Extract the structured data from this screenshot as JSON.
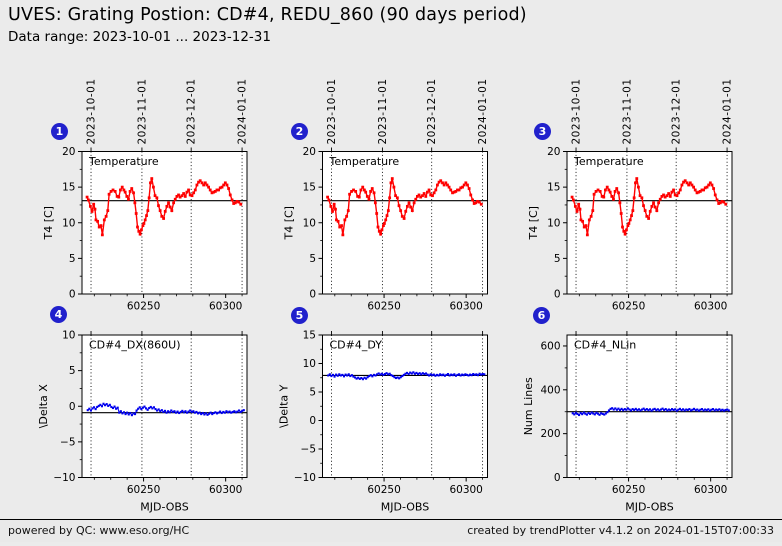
{
  "header": {
    "title": "UVES: Grating Postion: CD#4, REDU_860 (90 days period)",
    "subtitle": "Data range: 2023-10-01 ... 2023-12-31"
  },
  "footer": {
    "left": "powered by QC: www.eso.org/HC",
    "right": "created by trendPlotter v4.1.2 on 2024-01-15T07:00:33"
  },
  "badges": [
    "1",
    "2",
    "3",
    "4",
    "5",
    "6"
  ],
  "colors": {
    "background": "#ebebeb",
    "plot_bg": "#ffffff",
    "series_red": "#ff0000",
    "series_blue": "#0000ee",
    "badge_blue": "#2121cc",
    "avg_line": "#000000"
  },
  "month_marks": [
    {
      "mjd": 60218,
      "label": "2023-10-01"
    },
    {
      "mjd": 60249,
      "label": "2023-11-01"
    },
    {
      "mjd": 60279,
      "label": "2023-12-01"
    },
    {
      "mjd": 60310,
      "label": "2024-01-01"
    }
  ],
  "chart_data": [
    {
      "type": "line",
      "badge": "1",
      "label": "Temperature",
      "ylabel": "T4 [C]",
      "xlabel": "",
      "xlim": [
        60212.5,
        60313
      ],
      "ylim": [
        0,
        20
      ],
      "yticks": [
        0,
        5,
        10,
        15,
        20
      ],
      "y_minor": 2.5,
      "xticks": [
        60250,
        60300
      ],
      "x_minor": 10,
      "avg_line": 13.1,
      "series_ref": "temperature",
      "color": "#ff0000",
      "show_date_labels": true,
      "line_width": 1.4,
      "marker": 2.8
    },
    {
      "type": "line",
      "badge": "2",
      "label": "Temperature",
      "ylabel": "T4 [C]",
      "xlabel": "",
      "xlim": [
        60212.5,
        60313
      ],
      "ylim": [
        0,
        20
      ],
      "yticks": [
        0,
        5,
        10,
        15,
        20
      ],
      "y_minor": 2.5,
      "xticks": [
        60250,
        60300
      ],
      "x_minor": 10,
      "avg_line": 13.1,
      "series_ref": "temperature",
      "color": "#ff0000",
      "show_date_labels": true,
      "line_width": 1.4,
      "marker": 2.8
    },
    {
      "type": "line",
      "badge": "3",
      "label": "Temperature",
      "ylabel": "T4 [C]",
      "xlabel": "",
      "xlim": [
        60212.5,
        60313
      ],
      "ylim": [
        0,
        20
      ],
      "yticks": [
        0,
        5,
        10,
        15,
        20
      ],
      "y_minor": 2.5,
      "xticks": [
        60250,
        60300
      ],
      "x_minor": 10,
      "avg_line": 13.1,
      "series_ref": "temperature",
      "color": "#ff0000",
      "show_date_labels": true,
      "line_width": 1.4,
      "marker": 2.8
    },
    {
      "type": "line",
      "badge": "4",
      "label": "CD#4_DX(860U)",
      "ylabel": "\\Delta X",
      "xlabel": "MJD-OBS",
      "xlim": [
        60212.5,
        60313
      ],
      "ylim": [
        -10,
        10
      ],
      "yticks": [
        -10,
        -5,
        0,
        5,
        10
      ],
      "y_minor": 2.5,
      "xticks": [
        60250,
        60300
      ],
      "x_minor": 10,
      "avg_line": -0.9,
      "series_ref": "dx",
      "color": "#0000ee",
      "show_date_labels": false,
      "line_width": 1,
      "marker": 2.1
    },
    {
      "type": "line",
      "badge": "5",
      "label": "CD#4_DY",
      "ylabel": "\\Delta Y",
      "xlabel": "MJD-OBS",
      "xlim": [
        60212.5,
        60313
      ],
      "ylim": [
        -10,
        15
      ],
      "yticks": [
        -10,
        -5,
        0,
        5,
        10,
        15
      ],
      "y_minor": 2.5,
      "xticks": [
        60250,
        60300
      ],
      "x_minor": 10,
      "avg_line": 7.9,
      "series_ref": "dy",
      "color": "#0000ee",
      "show_date_labels": false,
      "line_width": 1,
      "marker": 2.1
    },
    {
      "type": "line",
      "badge": "6",
      "label": "CD#4_NLin",
      "ylabel": "Num Lines",
      "xlabel": "MJD-OBS",
      "xlim": [
        60212.5,
        60313
      ],
      "ylim": [
        0,
        650
      ],
      "yticks": [
        0,
        200,
        400,
        600
      ],
      "y_minor": 100,
      "xticks": [
        60250,
        60300
      ],
      "x_minor": 10,
      "avg_line": 300,
      "series_ref": "nlin",
      "color": "#0000ee",
      "show_date_labels": false,
      "line_width": 1,
      "marker": 2.1
    }
  ],
  "series_pool": {
    "temperature": {
      "x": [
        60215.6,
        60216.4,
        60217.6,
        60218.6,
        60219.6,
        60220.4,
        60221,
        60222,
        60223,
        60224.1,
        60224.9,
        60226.1,
        60227.2,
        60228.2,
        60229,
        60230.2,
        60231.4,
        60232.7,
        60233.9,
        60234.9,
        60235.9,
        60237,
        60238,
        60238.8,
        60239.8,
        60240.8,
        60241.8,
        60242.8,
        60243.9,
        60244.7,
        60245.5,
        60246.3,
        60247.1,
        60247.9,
        60248.7,
        60249.6,
        60250.2,
        60251,
        60251.8,
        60252.6,
        60253.4,
        60254.2,
        60255,
        60256,
        60257,
        60258.1,
        60259.1,
        60260.1,
        60261.1,
        60262.2,
        60263.2,
        60264.2,
        60265.2,
        60266.2,
        60267.2,
        60268.3,
        60269.3,
        60270.3,
        60271.3,
        60272.3,
        60273.4,
        60274.4,
        60275.4,
        60276.4,
        60277.4,
        60278.4,
        60279.5,
        60280.5,
        60281.5,
        60282.5,
        60283.5,
        60284.5,
        60285.6,
        60286.6,
        60287.6,
        60288.6,
        60289.6,
        60290.6,
        60291.7,
        60292.7,
        60293.7,
        60294.7,
        60295.7,
        60296.7,
        60297.8,
        60298.8,
        60299.8,
        60300.8,
        60301.8,
        60302.8,
        60303.9,
        60304.9,
        60305.9,
        60306.9,
        60308,
        60309.2
      ],
      "y": [
        13.6,
        13.2,
        12.3,
        11.6,
        12.6,
        11.9,
        10.4,
        10.2,
        9.4,
        9.6,
        8.3,
        10.4,
        10.9,
        11.7,
        14,
        14.4,
        14.6,
        14.4,
        13.7,
        13.6,
        14.6,
        15,
        14.6,
        14.3,
        13.7,
        13.3,
        14.4,
        14.8,
        14.2,
        12.8,
        11.3,
        9.4,
        8.8,
        8.4,
        9,
        9.6,
        9.9,
        10.4,
        11,
        11.7,
        13.5,
        15.6,
        16.2,
        15,
        13.8,
        13.5,
        12.4,
        11.7,
        10.9,
        10.6,
        11.6,
        12.3,
        12.8,
        12.2,
        11.7,
        12.8,
        13.3,
        13.7,
        13.9,
        13.6,
        13.8,
        14.1,
        13.7,
        14.3,
        14.6,
        13.9,
        13.8,
        14.2,
        14.6,
        15.3,
        15.7,
        15.9,
        15.6,
        15.3,
        15.6,
        15.3,
        15,
        14.6,
        14.2,
        14.3,
        14.4,
        14.6,
        14.6,
        14.9,
        15,
        15.3,
        15.6,
        15.3,
        14.8,
        13.9,
        13.2,
        12.7,
        12.8,
        13,
        12.9,
        12.6
      ]
    },
    "dx": {
      "x_start": 60216,
      "x_step": 0.96,
      "y": [
        -0.55,
        -0.35,
        -0.6,
        -0.3,
        -0.15,
        -0.4,
        -0.1,
        0.05,
        0.2,
        0,
        0.35,
        0.15,
        0.3,
        0.05,
        0.2,
        -0.1,
        -0.25,
        -0.05,
        -0.35,
        -0.2,
        -0.9,
        -0.7,
        -1,
        -0.85,
        -1.1,
        -0.9,
        -1.15,
        -0.95,
        -1.25,
        -1,
        -1.1,
        -0.6,
        -0.35,
        -0.15,
        -0.4,
        -0.2,
        -0.05,
        -0.3,
        -0.5,
        -0.25,
        -0.1,
        -0.3,
        -0.15,
        -0.4,
        -0.6,
        -0.45,
        -0.7,
        -0.55,
        -0.8,
        -0.65,
        -0.9,
        -0.7,
        -0.85,
        -0.6,
        -0.8,
        -0.7,
        -0.9,
        -0.75,
        -0.95,
        -0.8,
        -0.65,
        -0.85,
        -0.7,
        -0.9,
        -0.75,
        -0.6,
        -0.8,
        -0.7,
        -0.9,
        -0.8,
        -1,
        -0.9,
        -1.1,
        -0.95,
        -1.15,
        -1,
        -1.2,
        -1.05,
        -0.9,
        -1.1,
        -0.95,
        -0.85,
        -1,
        -0.9,
        -0.75,
        -0.95,
        -0.8,
        -0.9,
        -0.7,
        -0.85,
        -0.75,
        -0.9,
        -0.8,
        -0.7,
        -0.85,
        -0.75,
        -0.6,
        -0.8,
        -0.65,
        -0.55
      ]
    },
    "dy": {
      "x_start": 60216,
      "x_step": 0.96,
      "y": [
        7.9,
        8.1,
        7.8,
        8,
        7.7,
        8.05,
        7.85,
        8.1,
        7.9,
        8,
        7.75,
        8.05,
        7.9,
        8.1,
        7.8,
        7.95,
        7.7,
        7.55,
        7.35,
        7.5,
        7.3,
        7.45,
        7.25,
        7.5,
        7.35,
        7.6,
        7.8,
        7.95,
        7.75,
        8,
        7.9,
        8.1,
        8.25,
        8.05,
        8.2,
        8,
        8.15,
        8.3,
        8.1,
        8.2,
        7.95,
        7.8,
        7.6,
        7.45,
        7.55,
        7.4,
        7.6,
        7.8,
        8,
        8.2,
        8.35,
        8.15,
        8.4,
        8.25,
        8.45,
        8.2,
        8.35,
        8.15,
        8.3,
        8.1,
        8.3,
        8.15,
        8.25,
        8.05,
        7.9,
        8.1,
        7.95,
        8.05,
        7.85,
        8,
        7.9,
        8.1,
        7.95,
        8.05,
        7.85,
        8,
        8.15,
        7.9,
        8.05,
        7.95,
        8.1,
        7.85,
        8,
        8.1,
        7.9,
        8.05,
        7.95,
        8.1,
        8,
        7.9,
        8.05,
        7.95,
        8.15,
        8,
        8.1,
        7.95,
        8.2,
        8.05,
        8.15,
        8.1
      ]
    },
    "nlin": {
      "x_start": 60216,
      "x_step": 0.96,
      "y": [
        293,
        288,
        295,
        290,
        285,
        294,
        289,
        296,
        291,
        287,
        294,
        290,
        296,
        292,
        288,
        295,
        291,
        286,
        293,
        290,
        287,
        292,
        298,
        306,
        313,
        316,
        310,
        315,
        309,
        314,
        308,
        313,
        307,
        312,
        309,
        315,
        310,
        306,
        312,
        308,
        313,
        307,
        311,
        306,
        310,
        314,
        308,
        312,
        307,
        311,
        305,
        310,
        313,
        307,
        311,
        306,
        310,
        314,
        308,
        312,
        306,
        310,
        307,
        312,
        308,
        311,
        305,
        309,
        313,
        307,
        311,
        306,
        310,
        308,
        312,
        306,
        309,
        313,
        307,
        310,
        305,
        309,
        312,
        306,
        310,
        307,
        311,
        305,
        309,
        312,
        306,
        310,
        307,
        311,
        306,
        309,
        305,
        308,
        310,
        306
      ]
    }
  }
}
